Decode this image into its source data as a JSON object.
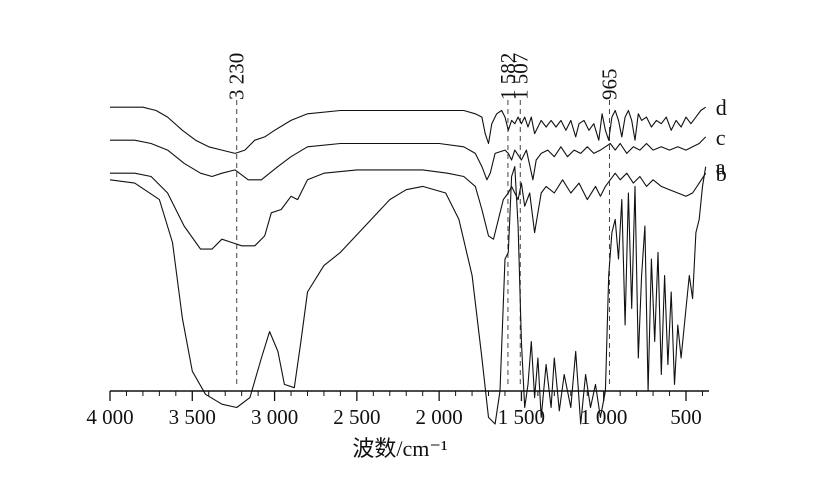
{
  "chart_data": {
    "type": "line",
    "title": "",
    "xlabel": "波数/cm⁻¹",
    "ylabel": "",
    "x_reversed": true,
    "xlim": [
      4000,
      360
    ],
    "grid": false,
    "legend": "labels at right end of each trace",
    "x_ticks": [
      4000,
      3500,
      3000,
      2500,
      2000,
      1500,
      1000,
      500
    ],
    "x_tick_labels": [
      "4 000",
      "3 500",
      "3 000",
      "2 500",
      "2 000",
      "1 500",
      "1 000",
      "500"
    ],
    "reference_lines": [
      {
        "x": 3230,
        "label": "3 230"
      },
      {
        "x": 1582,
        "label": "1 582"
      },
      {
        "x": 1507,
        "label": "1 507"
      },
      {
        "x": 965,
        "label": "965"
      }
    ],
    "series": [
      {
        "name": "a",
        "points": [
          [
            4000,
            0.84
          ],
          [
            3850,
            0.83
          ],
          [
            3700,
            0.78
          ],
          [
            3620,
            0.65
          ],
          [
            3560,
            0.42
          ],
          [
            3500,
            0.26
          ],
          [
            3420,
            0.19
          ],
          [
            3320,
            0.16
          ],
          [
            3230,
            0.15
          ],
          [
            3150,
            0.18
          ],
          [
            3080,
            0.3
          ],
          [
            3030,
            0.38
          ],
          [
            2980,
            0.32
          ],
          [
            2940,
            0.22
          ],
          [
            2880,
            0.21
          ],
          [
            2840,
            0.35
          ],
          [
            2800,
            0.5
          ],
          [
            2700,
            0.58
          ],
          [
            2600,
            0.62
          ],
          [
            2450,
            0.7
          ],
          [
            2300,
            0.78
          ],
          [
            2200,
            0.81
          ],
          [
            2100,
            0.82
          ],
          [
            1960,
            0.8
          ],
          [
            1880,
            0.72
          ],
          [
            1800,
            0.55
          ],
          [
            1740,
            0.3
          ],
          [
            1700,
            0.12
          ],
          [
            1660,
            0.1
          ],
          [
            1630,
            0.2
          ],
          [
            1600,
            0.6
          ],
          [
            1580,
            0.62
          ],
          [
            1560,
            0.85
          ],
          [
            1540,
            0.88
          ],
          [
            1520,
            0.7
          ],
          [
            1500,
            0.35
          ],
          [
            1480,
            0.15
          ],
          [
            1460,
            0.22
          ],
          [
            1440,
            0.35
          ],
          [
            1420,
            0.18
          ],
          [
            1400,
            0.3
          ],
          [
            1380,
            0.12
          ],
          [
            1350,
            0.28
          ],
          [
            1320,
            0.15
          ],
          [
            1300,
            0.3
          ],
          [
            1270,
            0.14
          ],
          [
            1240,
            0.25
          ],
          [
            1200,
            0.15
          ],
          [
            1170,
            0.32
          ],
          [
            1140,
            0.1
          ],
          [
            1110,
            0.25
          ],
          [
            1080,
            0.15
          ],
          [
            1050,
            0.22
          ],
          [
            1020,
            0.12
          ],
          [
            990,
            0.2
          ],
          [
            970,
            0.55
          ],
          [
            950,
            0.68
          ],
          [
            930,
            0.72
          ],
          [
            910,
            0.6
          ],
          [
            890,
            0.78
          ],
          [
            870,
            0.4
          ],
          [
            850,
            0.8
          ],
          [
            830,
            0.45
          ],
          [
            810,
            0.82
          ],
          [
            790,
            0.3
          ],
          [
            770,
            0.55
          ],
          [
            750,
            0.7
          ],
          [
            730,
            0.2
          ],
          [
            710,
            0.6
          ],
          [
            690,
            0.35
          ],
          [
            670,
            0.62
          ],
          [
            650,
            0.25
          ],
          [
            630,
            0.55
          ],
          [
            610,
            0.28
          ],
          [
            590,
            0.5
          ],
          [
            570,
            0.22
          ],
          [
            550,
            0.4
          ],
          [
            530,
            0.3
          ],
          [
            500,
            0.45
          ],
          [
            480,
            0.55
          ],
          [
            460,
            0.48
          ],
          [
            440,
            0.68
          ],
          [
            420,
            0.72
          ],
          [
            400,
            0.82
          ],
          [
            380,
            0.88
          ]
        ]
      },
      {
        "name": "b",
        "points": [
          [
            4000,
            0.86
          ],
          [
            3850,
            0.86
          ],
          [
            3750,
            0.85
          ],
          [
            3650,
            0.8
          ],
          [
            3550,
            0.7
          ],
          [
            3450,
            0.63
          ],
          [
            3380,
            0.63
          ],
          [
            3320,
            0.66
          ],
          [
            3260,
            0.65
          ],
          [
            3200,
            0.64
          ],
          [
            3120,
            0.64
          ],
          [
            3060,
            0.67
          ],
          [
            3020,
            0.74
          ],
          [
            2960,
            0.75
          ],
          [
            2900,
            0.79
          ],
          [
            2860,
            0.78
          ],
          [
            2800,
            0.84
          ],
          [
            2700,
            0.86
          ],
          [
            2500,
            0.87
          ],
          [
            2300,
            0.87
          ],
          [
            2100,
            0.87
          ],
          [
            1950,
            0.86
          ],
          [
            1850,
            0.85
          ],
          [
            1780,
            0.82
          ],
          [
            1740,
            0.75
          ],
          [
            1700,
            0.67
          ],
          [
            1670,
            0.66
          ],
          [
            1640,
            0.72
          ],
          [
            1610,
            0.78
          ],
          [
            1580,
            0.8
          ],
          [
            1560,
            0.82
          ],
          [
            1540,
            0.8
          ],
          [
            1520,
            0.78
          ],
          [
            1500,
            0.83
          ],
          [
            1480,
            0.76
          ],
          [
            1450,
            0.8
          ],
          [
            1420,
            0.68
          ],
          [
            1400,
            0.74
          ],
          [
            1380,
            0.8
          ],
          [
            1350,
            0.82
          ],
          [
            1300,
            0.8
          ],
          [
            1250,
            0.84
          ],
          [
            1200,
            0.8
          ],
          [
            1150,
            0.83
          ],
          [
            1100,
            0.78
          ],
          [
            1050,
            0.82
          ],
          [
            1020,
            0.79
          ],
          [
            990,
            0.82
          ],
          [
            960,
            0.84
          ],
          [
            930,
            0.86
          ],
          [
            900,
            0.84
          ],
          [
            860,
            0.86
          ],
          [
            820,
            0.83
          ],
          [
            780,
            0.85
          ],
          [
            740,
            0.82
          ],
          [
            700,
            0.84
          ],
          [
            650,
            0.82
          ],
          [
            600,
            0.81
          ],
          [
            550,
            0.8
          ],
          [
            500,
            0.79
          ],
          [
            460,
            0.8
          ],
          [
            420,
            0.83
          ],
          [
            380,
            0.86
          ]
        ]
      },
      {
        "name": "c",
        "points": [
          [
            4000,
            0.96
          ],
          [
            3850,
            0.96
          ],
          [
            3750,
            0.95
          ],
          [
            3650,
            0.93
          ],
          [
            3550,
            0.89
          ],
          [
            3450,
            0.86
          ],
          [
            3380,
            0.85
          ],
          [
            3320,
            0.86
          ],
          [
            3240,
            0.87
          ],
          [
            3160,
            0.84
          ],
          [
            3080,
            0.84
          ],
          [
            3030,
            0.86
          ],
          [
            2980,
            0.88
          ],
          [
            2900,
            0.91
          ],
          [
            2800,
            0.94
          ],
          [
            2600,
            0.95
          ],
          [
            2400,
            0.95
          ],
          [
            2200,
            0.95
          ],
          [
            2000,
            0.95
          ],
          [
            1850,
            0.94
          ],
          [
            1780,
            0.92
          ],
          [
            1740,
            0.88
          ],
          [
            1710,
            0.84
          ],
          [
            1690,
            0.86
          ],
          [
            1660,
            0.92
          ],
          [
            1600,
            0.93
          ],
          [
            1580,
            0.92
          ],
          [
            1560,
            0.9
          ],
          [
            1540,
            0.93
          ],
          [
            1500,
            0.9
          ],
          [
            1470,
            0.93
          ],
          [
            1430,
            0.84
          ],
          [
            1410,
            0.9
          ],
          [
            1380,
            0.92
          ],
          [
            1340,
            0.93
          ],
          [
            1300,
            0.91
          ],
          [
            1260,
            0.94
          ],
          [
            1220,
            0.91
          ],
          [
            1180,
            0.93
          ],
          [
            1140,
            0.92
          ],
          [
            1100,
            0.94
          ],
          [
            1060,
            0.92
          ],
          [
            1020,
            0.93
          ],
          [
            990,
            0.94
          ],
          [
            960,
            0.95
          ],
          [
            930,
            0.93
          ],
          [
            900,
            0.95
          ],
          [
            860,
            0.92
          ],
          [
            820,
            0.94
          ],
          [
            780,
            0.93
          ],
          [
            740,
            0.95
          ],
          [
            700,
            0.93
          ],
          [
            650,
            0.94
          ],
          [
            600,
            0.93
          ],
          [
            550,
            0.94
          ],
          [
            500,
            0.93
          ],
          [
            460,
            0.94
          ],
          [
            420,
            0.95
          ],
          [
            380,
            0.97
          ]
        ]
      },
      {
        "name": "d",
        "points": [
          [
            4000,
            1.06
          ],
          [
            3900,
            1.06
          ],
          [
            3800,
            1.06
          ],
          [
            3720,
            1.05
          ],
          [
            3650,
            1.03
          ],
          [
            3560,
            0.99
          ],
          [
            3480,
            0.96
          ],
          [
            3400,
            0.94
          ],
          [
            3320,
            0.93
          ],
          [
            3240,
            0.92
          ],
          [
            3180,
            0.93
          ],
          [
            3120,
            0.96
          ],
          [
            3060,
            0.97
          ],
          [
            3000,
            0.99
          ],
          [
            2900,
            1.02
          ],
          [
            2800,
            1.04
          ],
          [
            2600,
            1.05
          ],
          [
            2400,
            1.05
          ],
          [
            2200,
            1.05
          ],
          [
            2000,
            1.05
          ],
          [
            1850,
            1.05
          ],
          [
            1780,
            1.04
          ],
          [
            1740,
            1.03
          ],
          [
            1720,
            0.98
          ],
          [
            1700,
            0.95
          ],
          [
            1680,
            1.01
          ],
          [
            1650,
            1.04
          ],
          [
            1620,
            1.05
          ],
          [
            1600,
            1.03
          ],
          [
            1580,
            0.99
          ],
          [
            1560,
            1.02
          ],
          [
            1540,
            1.01
          ],
          [
            1520,
            1.03
          ],
          [
            1500,
            1.01
          ],
          [
            1480,
            1.03
          ],
          [
            1460,
            1.0
          ],
          [
            1440,
            1.03
          ],
          [
            1420,
            0.98
          ],
          [
            1400,
            1.0
          ],
          [
            1380,
            1.02
          ],
          [
            1350,
            1.0
          ],
          [
            1320,
            1.02
          ],
          [
            1290,
            1.0
          ],
          [
            1260,
            1.02
          ],
          [
            1230,
            0.99
          ],
          [
            1200,
            1.02
          ],
          [
            1170,
            0.97
          ],
          [
            1150,
            1.01
          ],
          [
            1120,
            1.02
          ],
          [
            1090,
            0.99
          ],
          [
            1060,
            1.01
          ],
          [
            1030,
            0.96
          ],
          [
            1010,
            1.04
          ],
          [
            990,
            0.99
          ],
          [
            970,
            0.96
          ],
          [
            950,
            1.03
          ],
          [
            930,
            1.05
          ],
          [
            910,
            1.02
          ],
          [
            890,
            0.97
          ],
          [
            870,
            1.03
          ],
          [
            850,
            1.05
          ],
          [
            830,
            1.02
          ],
          [
            810,
            0.96
          ],
          [
            790,
            1.04
          ],
          [
            770,
            1.02
          ],
          [
            740,
            1.03
          ],
          [
            710,
            1.0
          ],
          [
            680,
            1.02
          ],
          [
            650,
            1.01
          ],
          [
            620,
            1.03
          ],
          [
            590,
            0.99
          ],
          [
            560,
            1.02
          ],
          [
            530,
            1.0
          ],
          [
            500,
            1.03
          ],
          [
            470,
            1.01
          ],
          [
            440,
            1.03
          ],
          [
            410,
            1.05
          ],
          [
            380,
            1.06
          ]
        ]
      }
    ]
  }
}
